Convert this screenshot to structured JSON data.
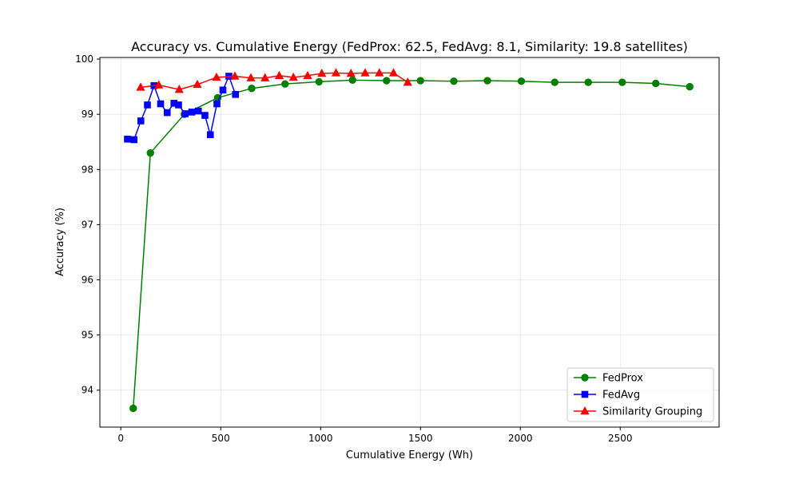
{
  "chart_data": {
    "type": "line",
    "title": "Accuracy vs. Cumulative Energy (FedProx: 62.5, FedAvg: 8.1, Similarity: 19.8 satellites)",
    "xlabel": "Cumulative Energy (Wh)",
    "ylabel": "Accuracy (%)",
    "xlim": [
      -105,
      2995
    ],
    "ylim": [
      93.33,
      100.03
    ],
    "xticks": [
      0,
      500,
      1000,
      1500,
      2000,
      2500
    ],
    "yticks": [
      94,
      95,
      96,
      97,
      98,
      99,
      100
    ],
    "grid": true,
    "legend_position": "bottom-right",
    "series": [
      {
        "name": "FedProx",
        "color": "#008000",
        "marker": "circle",
        "points": [
          [
            62,
            93.67
          ],
          [
            148,
            98.3
          ],
          [
            318,
            99.0
          ],
          [
            485,
            99.3
          ],
          [
            655,
            99.47
          ],
          [
            822,
            99.55
          ],
          [
            992,
            99.59
          ],
          [
            1160,
            99.62
          ],
          [
            1330,
            99.61
          ],
          [
            1500,
            99.61
          ],
          [
            1667,
            99.6
          ],
          [
            1835,
            99.61
          ],
          [
            2005,
            99.6
          ],
          [
            2172,
            99.58
          ],
          [
            2340,
            99.58
          ],
          [
            2510,
            99.58
          ],
          [
            2678,
            99.56
          ],
          [
            2848,
            99.5
          ]
        ]
      },
      {
        "name": "FedAvg",
        "color": "#0000ff",
        "marker": "square",
        "points": [
          [
            33,
            98.55
          ],
          [
            66,
            98.54
          ],
          [
            100,
            98.88
          ],
          [
            133,
            99.17
          ],
          [
            166,
            99.52
          ],
          [
            199,
            99.19
          ],
          [
            232,
            99.03
          ],
          [
            266,
            99.2
          ],
          [
            289,
            99.17
          ],
          [
            322,
            99.01
          ],
          [
            355,
            99.04
          ],
          [
            388,
            99.06
          ],
          [
            421,
            98.98
          ],
          [
            448,
            98.63
          ],
          [
            481,
            99.19
          ],
          [
            511,
            99.44
          ],
          [
            541,
            99.69
          ],
          [
            574,
            99.36
          ]
        ]
      },
      {
        "name": "Similarity Grouping",
        "color": "#ff0000",
        "marker": "triangle",
        "points": [
          [
            99,
            99.49
          ],
          [
            190,
            99.53
          ],
          [
            292,
            99.45
          ],
          [
            383,
            99.54
          ],
          [
            479,
            99.67
          ],
          [
            571,
            99.69
          ],
          [
            651,
            99.66
          ],
          [
            722,
            99.66
          ],
          [
            793,
            99.7
          ],
          [
            864,
            99.67
          ],
          [
            935,
            99.7
          ],
          [
            1006,
            99.74
          ],
          [
            1077,
            99.75
          ],
          [
            1152,
            99.74
          ],
          [
            1223,
            99.75
          ],
          [
            1294,
            99.75
          ],
          [
            1365,
            99.75
          ],
          [
            1436,
            99.58
          ]
        ]
      }
    ]
  }
}
